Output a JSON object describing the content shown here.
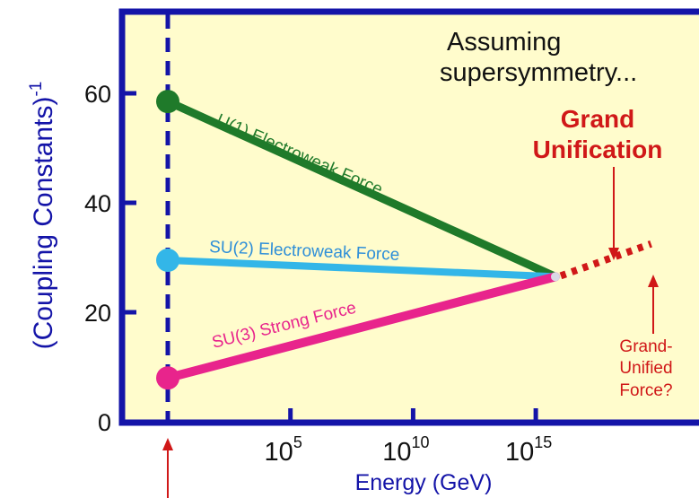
{
  "chart_data": {
    "type": "line",
    "ylabel": "(Coupling Constants)",
    "ylabel_superscript": "-1",
    "xlabel": "Energy (GeV)",
    "ylim": [
      0,
      72
    ],
    "x_log10_range": [
      0,
      20
    ],
    "y_ticks": [
      {
        "value": 0,
        "label": "0"
      },
      {
        "value": 20,
        "label": "20"
      },
      {
        "value": 40,
        "label": "40"
      },
      {
        "value": 60,
        "label": "60"
      }
    ],
    "x_ticks": [
      {
        "log10": 5,
        "base": "10",
        "exp": "5"
      },
      {
        "log10": 10,
        "base": "10",
        "exp": "10"
      },
      {
        "log10": 15,
        "base": "10",
        "exp": "15"
      }
    ],
    "series": [
      {
        "name": "U(1) Electroweak Force",
        "color": "#1f7a2a",
        "label_color": "#1f7a2a",
        "x_log10": [
          0,
          15.8
        ],
        "y": [
          58.5,
          26.5
        ]
      },
      {
        "name": "SU(2) Electroweak Force",
        "color": "#33b6e8",
        "label_color": "#2f8fd8",
        "x_log10": [
          0,
          15.8
        ],
        "y": [
          29.5,
          26.5
        ]
      },
      {
        "name": "SU(3) Strong Force",
        "color": "#e8248c",
        "label_color": "#e8248c",
        "x_log10": [
          0,
          15.8
        ],
        "y": [
          8,
          26.5
        ]
      }
    ],
    "unified_extension": {
      "color": "#d01818",
      "x_log10": [
        15.8,
        19.7
      ],
      "y": [
        26.5,
        32.5
      ]
    },
    "reference_line": {
      "x_log10": 0,
      "color": "#1414a8"
    },
    "annotations": {
      "assumption_line1": "Assuming",
      "assumption_line2": "supersymmetry...",
      "unification_line1": "Grand",
      "unification_line2": "Unification",
      "unified_force_line1": "Grand-",
      "unified_force_line2": "Unified",
      "unified_force_line3": "Force?"
    },
    "colors": {
      "plot_background": "#fffccc",
      "frame": "#1414a8",
      "annotation_red": "#d01818",
      "axis_text": "#1414a8"
    }
  }
}
